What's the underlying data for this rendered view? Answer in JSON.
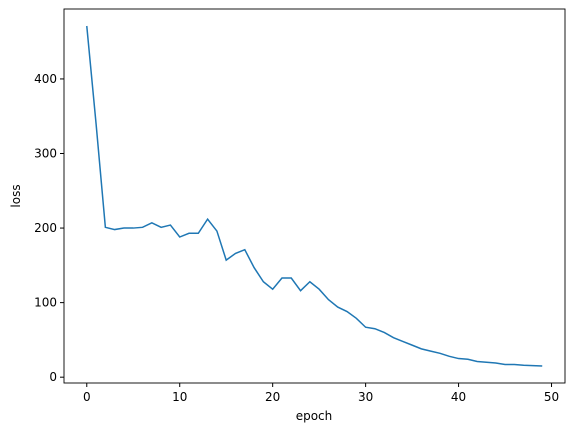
{
  "chart_data": {
    "type": "line",
    "x_label": "epoch",
    "y_label": "loss",
    "x": [
      0,
      1,
      2,
      3,
      4,
      5,
      6,
      7,
      8,
      9,
      10,
      11,
      12,
      13,
      14,
      15,
      16,
      17,
      18,
      19,
      20,
      21,
      22,
      23,
      24,
      25,
      26,
      27,
      28,
      29,
      30,
      31,
      32,
      33,
      34,
      35,
      36,
      37,
      38,
      39,
      40,
      41,
      42,
      43,
      44,
      45,
      46,
      47,
      48,
      49
    ],
    "series": [
      {
        "color": "#1f77b4",
        "values": [
          471,
          340,
          201,
          198,
          200,
          200,
          201,
          207,
          201,
          204,
          188,
          193,
          193,
          212,
          196,
          157,
          166,
          171,
          147,
          128,
          118,
          133,
          133,
          116,
          128,
          118,
          104,
          94,
          88,
          79,
          67,
          65,
          60,
          53,
          48,
          43,
          38,
          35,
          32,
          28,
          25,
          24,
          21,
          20,
          19,
          17,
          17,
          16,
          15.5,
          15
        ]
      }
    ],
    "xlim": [
      -2.45,
      51.45
    ],
    "xticks": [
      0,
      10,
      20,
      30,
      40,
      50
    ],
    "ylim": [
      -7.8,
      493.8
    ],
    "yticks": [
      0,
      100,
      200,
      300,
      400
    ],
    "grid": false
  }
}
